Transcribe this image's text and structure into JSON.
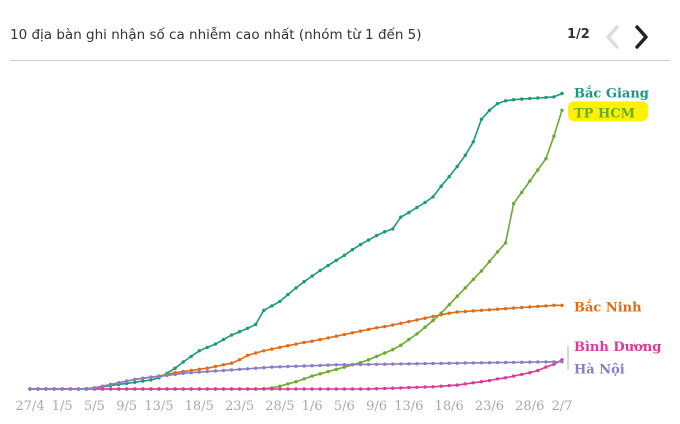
{
  "header": {
    "title": "10 địa bàn ghi nhận số ca nhiễm cao nhất (nhóm từ 1 đến 5)",
    "pager": "1/2"
  },
  "icons": {
    "prev": "chevron-left-icon",
    "next": "chevron-right-icon"
  },
  "colors": {
    "bac_giang": "#1a9a7a",
    "tp_hcm": "#6aaa2f",
    "bac_ninh": "#e06c18",
    "binh_duong": "#e0379a",
    "ha_noi": "#8c7cc4",
    "highlight": "#fff200"
  },
  "chart_data": {
    "type": "line",
    "x": [
      "27/4",
      "28/4",
      "29/4",
      "30/4",
      "1/5",
      "2/5",
      "3/5",
      "4/5",
      "5/5",
      "6/5",
      "7/5",
      "8/5",
      "9/5",
      "10/5",
      "11/5",
      "12/5",
      "13/5",
      "14/5",
      "15/5",
      "16/5",
      "17/5",
      "18/5",
      "19/5",
      "20/5",
      "21/5",
      "22/5",
      "23/5",
      "24/5",
      "25/5",
      "26/5",
      "27/5",
      "28/5",
      "29/5",
      "30/5",
      "31/5",
      "1/6",
      "2/6",
      "3/6",
      "4/6",
      "5/6",
      "6/6",
      "7/6",
      "8/6",
      "9/6",
      "10/6",
      "11/6",
      "12/6",
      "13/6",
      "14/6",
      "15/6",
      "16/6",
      "17/6",
      "18/6",
      "19/6",
      "20/6",
      "21/6",
      "22/6",
      "23/6",
      "24/6",
      "25/6",
      "26/6",
      "27/6",
      "28/6",
      "29/6",
      "30/6",
      "1/7",
      "2/7"
    ],
    "x_ticks": [
      "27/4",
      "1/5",
      "5/5",
      "9/5",
      "13/5",
      "18/5",
      "23/5",
      "28/5",
      "1/6",
      "5/6",
      "9/6",
      "13/6",
      "18/6",
      "23/6",
      "28/6",
      "2/7"
    ],
    "ylim": [
      0,
      5500
    ],
    "grid": false,
    "legend": "labels at line ends",
    "series": [
      {
        "name": "Bắc Giang",
        "values": [
          0,
          0,
          0,
          0,
          0,
          0,
          0,
          5,
          20,
          40,
          60,
          80,
          100,
          120,
          140,
          160,
          200,
          280,
          370,
          480,
          580,
          680,
          740,
          800,
          880,
          960,
          1020,
          1080,
          1150,
          1400,
          1480,
          1560,
          1680,
          1800,
          1910,
          2010,
          2110,
          2200,
          2290,
          2380,
          2480,
          2570,
          2650,
          2730,
          2800,
          2850,
          3060,
          3140,
          3230,
          3320,
          3420,
          3610,
          3780,
          3960,
          4160,
          4400,
          4800,
          4960,
          5080,
          5130,
          5150,
          5160,
          5170,
          5180,
          5190,
          5200,
          5260
        ]
      },
      {
        "name": "TP HCM",
        "values": [
          0,
          0,
          0,
          0,
          0,
          0,
          0,
          0,
          0,
          0,
          0,
          0,
          0,
          0,
          0,
          0,
          0,
          0,
          0,
          0,
          0,
          0,
          0,
          0,
          0,
          0,
          0,
          0,
          0,
          5,
          20,
          50,
          90,
          130,
          180,
          230,
          270,
          310,
          350,
          390,
          430,
          470,
          520,
          580,
          640,
          700,
          780,
          880,
          980,
          1100,
          1220,
          1350,
          1500,
          1650,
          1800,
          1950,
          2100,
          2270,
          2440,
          2600,
          3300,
          3500,
          3700,
          3900,
          4100,
          4500,
          4960
        ]
      },
      {
        "name": "Bắc Ninh",
        "values": [
          0,
          0,
          0,
          0,
          0,
          0,
          0,
          5,
          20,
          50,
          80,
          110,
          140,
          170,
          190,
          210,
          230,
          260,
          290,
          310,
          330,
          350,
          370,
          400,
          430,
          460,
          520,
          600,
          640,
          680,
          710,
          740,
          770,
          800,
          830,
          850,
          880,
          910,
          940,
          970,
          1000,
          1030,
          1060,
          1090,
          1110,
          1140,
          1170,
          1200,
          1230,
          1260,
          1290,
          1320,
          1350,
          1370,
          1380,
          1390,
          1400,
          1410,
          1420,
          1430,
          1440,
          1450,
          1460,
          1470,
          1480,
          1490,
          1490
        ]
      },
      {
        "name": "Bình Dương",
        "values": [
          0,
          0,
          0,
          0,
          0,
          0,
          0,
          0,
          0,
          0,
          0,
          0,
          0,
          0,
          0,
          0,
          0,
          0,
          0,
          0,
          0,
          0,
          0,
          0,
          0,
          0,
          0,
          0,
          0,
          0,
          0,
          0,
          0,
          0,
          0,
          0,
          0,
          0,
          0,
          0,
          0,
          0,
          0,
          5,
          10,
          15,
          20,
          25,
          30,
          35,
          40,
          50,
          60,
          70,
          90,
          110,
          130,
          150,
          180,
          200,
          230,
          260,
          290,
          330,
          390,
          440,
          520
        ]
      },
      {
        "name": "Hà Nội",
        "values": [
          0,
          0,
          0,
          0,
          0,
          0,
          0,
          5,
          20,
          50,
          80,
          110,
          140,
          170,
          190,
          210,
          220,
          240,
          260,
          280,
          290,
          300,
          310,
          320,
          330,
          340,
          350,
          360,
          370,
          380,
          390,
          395,
          400,
          405,
          410,
          415,
          420,
          425,
          430,
          432,
          434,
          436,
          438,
          440,
          442,
          444,
          446,
          448,
          450,
          452,
          454,
          456,
          458,
          460,
          462,
          464,
          466,
          468,
          470,
          472,
          474,
          476,
          478,
          480,
          482,
          484,
          486
        ]
      }
    ]
  }
}
